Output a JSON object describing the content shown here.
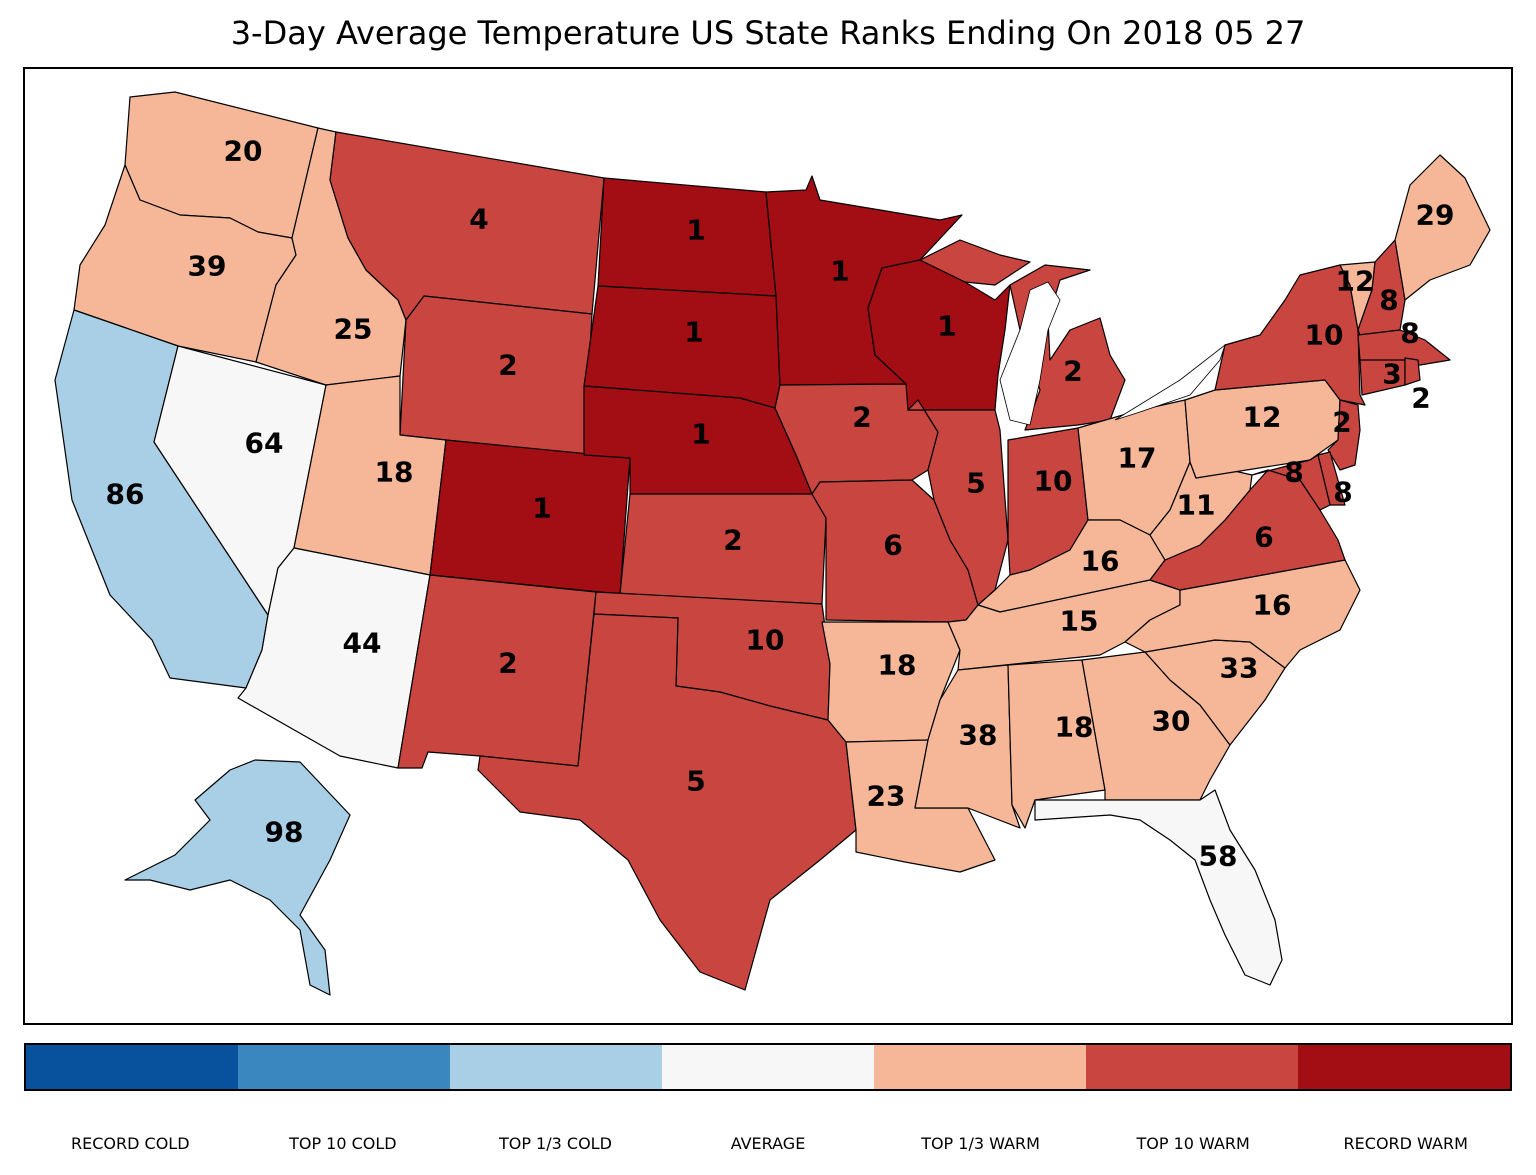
{
  "title": "3-Day Average Temperature US State Ranks Ending On 2018 05 27",
  "colors": {
    "record_cold": "#08519c",
    "top10_cold": "#3a87c0",
    "top13_cold": "#a8cfe5",
    "average": "#f7f7f7",
    "top13_warm": "#f5b797",
    "top10_warm": "#c94540",
    "record_warm": "#a30e14"
  },
  "legend": {
    "items": [
      {
        "label": "RECORD COLD",
        "color": "#08519c"
      },
      {
        "label": "TOP 10 COLD",
        "color": "#3a87c0"
      },
      {
        "label": "TOP 1/3 COLD",
        "color": "#a8cfe5"
      },
      {
        "label": "AVERAGE",
        "color": "#f7f7f7"
      },
      {
        "label": "TOP 1/3 WARM",
        "color": "#f5b797"
      },
      {
        "label": "TOP 10 WARM",
        "color": "#c94540"
      },
      {
        "label": "RECORD WARM",
        "color": "#a30e14"
      }
    ]
  },
  "states": {
    "WA": {
      "rank": "20",
      "category": "top13_warm"
    },
    "OR": {
      "rank": "39",
      "category": "top13_warm"
    },
    "CA": {
      "rank": "86",
      "category": "top13_cold"
    },
    "NV": {
      "rank": "64",
      "category": "average"
    },
    "ID": {
      "rank": "25",
      "category": "top13_warm"
    },
    "MT": {
      "rank": "4",
      "category": "top10_warm"
    },
    "WY": {
      "rank": "2",
      "category": "top10_warm"
    },
    "UT": {
      "rank": "18",
      "category": "top13_warm"
    },
    "AZ": {
      "rank": "44",
      "category": "average"
    },
    "CO": {
      "rank": "1",
      "category": "record_warm"
    },
    "NM": {
      "rank": "2",
      "category": "top10_warm"
    },
    "ND": {
      "rank": "1",
      "category": "record_warm"
    },
    "SD": {
      "rank": "1",
      "category": "record_warm"
    },
    "NE": {
      "rank": "1",
      "category": "record_warm"
    },
    "KS": {
      "rank": "2",
      "category": "top10_warm"
    },
    "OK": {
      "rank": "10",
      "category": "top10_warm"
    },
    "TX": {
      "rank": "5",
      "category": "top10_warm"
    },
    "MN": {
      "rank": "1",
      "category": "record_warm"
    },
    "IA": {
      "rank": "2",
      "category": "top10_warm"
    },
    "MO": {
      "rank": "6",
      "category": "top10_warm"
    },
    "AR": {
      "rank": "18",
      "category": "top13_warm"
    },
    "LA": {
      "rank": "23",
      "category": "top13_warm"
    },
    "WI": {
      "rank": "1",
      "category": "record_warm"
    },
    "IL": {
      "rank": "5",
      "category": "top10_warm"
    },
    "MI": {
      "rank": "2",
      "category": "top10_warm"
    },
    "IN": {
      "rank": "10",
      "category": "top10_warm"
    },
    "OH": {
      "rank": "17",
      "category": "top13_warm"
    },
    "KY": {
      "rank": "16",
      "category": "top13_warm"
    },
    "TN": {
      "rank": "15",
      "category": "top13_warm"
    },
    "MS": {
      "rank": "38",
      "category": "top13_warm"
    },
    "AL": {
      "rank": "18",
      "category": "top13_warm"
    },
    "GA": {
      "rank": "30",
      "category": "top13_warm"
    },
    "FL": {
      "rank": "58",
      "category": "average"
    },
    "SC": {
      "rank": "33",
      "category": "top13_warm"
    },
    "NC": {
      "rank": "16",
      "category": "top13_warm"
    },
    "VA": {
      "rank": "6",
      "category": "top10_warm"
    },
    "WV": {
      "rank": "11",
      "category": "top13_warm"
    },
    "PA": {
      "rank": "12",
      "category": "top13_warm"
    },
    "NY": {
      "rank": "10",
      "category": "top10_warm"
    },
    "VT": {
      "rank": "12",
      "category": "top13_warm"
    },
    "NH": {
      "rank": "8",
      "category": "top10_warm"
    },
    "ME": {
      "rank": "29",
      "category": "top13_warm"
    },
    "MA": {
      "rank": "8",
      "category": "top10_warm"
    },
    "CT": {
      "rank": "3",
      "category": "top10_warm"
    },
    "RI": {
      "rank": "2",
      "category": "top10_warm"
    },
    "NJ": {
      "rank": "2",
      "category": "top10_warm"
    },
    "DE": {
      "rank": "8",
      "category": "top10_warm"
    },
    "MD": {
      "rank": "8",
      "category": "top10_warm"
    },
    "AK": {
      "rank": "98",
      "category": "top13_cold"
    }
  }
}
